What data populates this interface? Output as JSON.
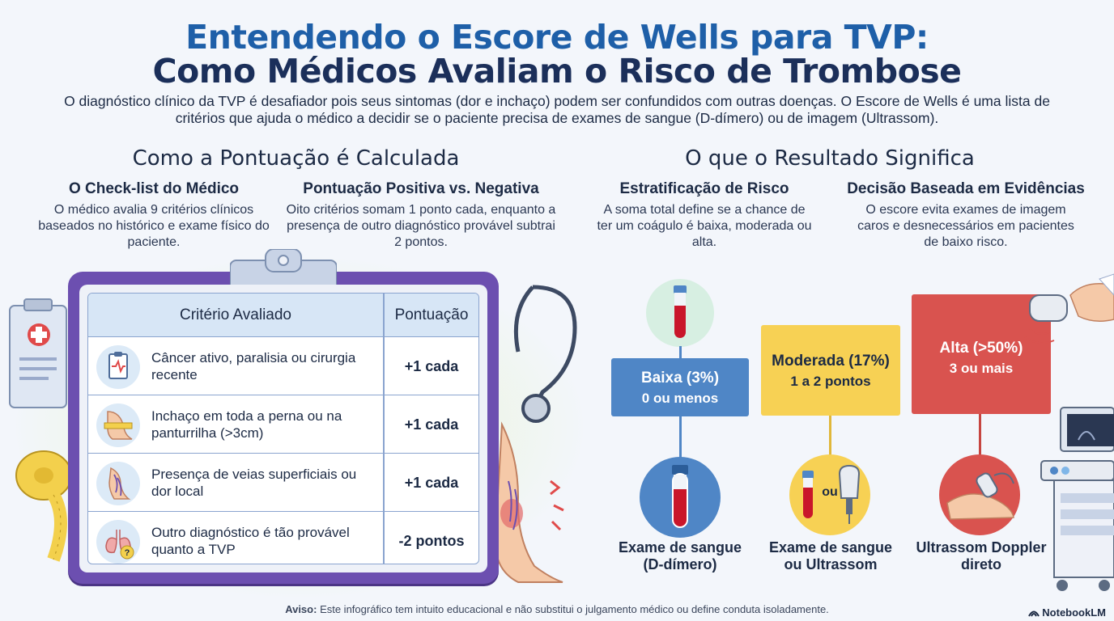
{
  "header": {
    "title_line1": "Entendendo o Escore de Wells para TVP:",
    "title_line2": "Como Médicos Avaliam o Risco de Trombose",
    "intro": "O diagnóstico clínico da TVP é desafiador pois seus sintomas (dor e inchaço) podem ser confundidos com outras doenças. O Escore de Wells é uma lista de critérios que ajuda o médico a decidir se o paciente precisa de exames de sangue (D-dímero) ou de imagem (Ultrassom)."
  },
  "left": {
    "heading": "Como a Pontuação é Calculada",
    "col1": {
      "title": "O Check-list do Médico",
      "text": "O médico avalia 9 critérios clínicos baseados no histórico e exame físico do paciente."
    },
    "col2": {
      "title": "Pontuação Positiva vs. Negativa",
      "text": "Oito critérios somam 1 ponto cada, enquanto a presença de outro diagnóstico provável subtrai 2 pontos."
    }
  },
  "table": {
    "header_criterion": "Critério Avaliado",
    "header_score": "Pontuação",
    "rows": [
      {
        "text": "Câncer ativo, paralisia ou cirurgia recente",
        "score": "+1 cada",
        "icon": "medical-chart-icon"
      },
      {
        "text": "Inchaço em toda a perna ou na panturrilha (>3cm)",
        "score": "+1 cada",
        "icon": "leg-measure-icon"
      },
      {
        "text": "Presença de veias superficiais ou dor local",
        "score": "+1 cada",
        "icon": "veins-icon"
      },
      {
        "text": "Outro diagnóstico é tão provável quanto a TVP",
        "score": "-2 pontos",
        "icon": "lungs-question-icon"
      }
    ]
  },
  "right": {
    "heading": "O que o Resultado Significa",
    "col1": {
      "title": "Estratificação de Risco",
      "text": "A soma total define se a chance de ter um coágulo é baixa, moderada ou alta."
    },
    "col2": {
      "title": "Decisão Baseada em Evidências",
      "text": "O escore evita exames de imagem caros e desnecessários em pacientes de baixo risco."
    }
  },
  "risk": [
    {
      "label": "Baixa (3%)",
      "points": "0 ou menos",
      "result": "Exame de sangue (D-dímero)",
      "color": "#4f86c6"
    },
    {
      "label": "Moderada (17%)",
      "points": "1 a 2 pontos",
      "result": "Exame de sangue ou Ultrassom",
      "color": "#f7d154",
      "or_label": "ou"
    },
    {
      "label": "Alta (>50%)",
      "points": "3 ou mais",
      "result": "Ultrassom Doppler direto",
      "color": "#d9534f"
    }
  ],
  "footer": {
    "disclaimer_label": "Aviso:",
    "disclaimer": "Este infográfico tem intuito educacional e não substitui o julgamento médico ou define conduta isoladamente.",
    "brand": "NotebookLM"
  }
}
